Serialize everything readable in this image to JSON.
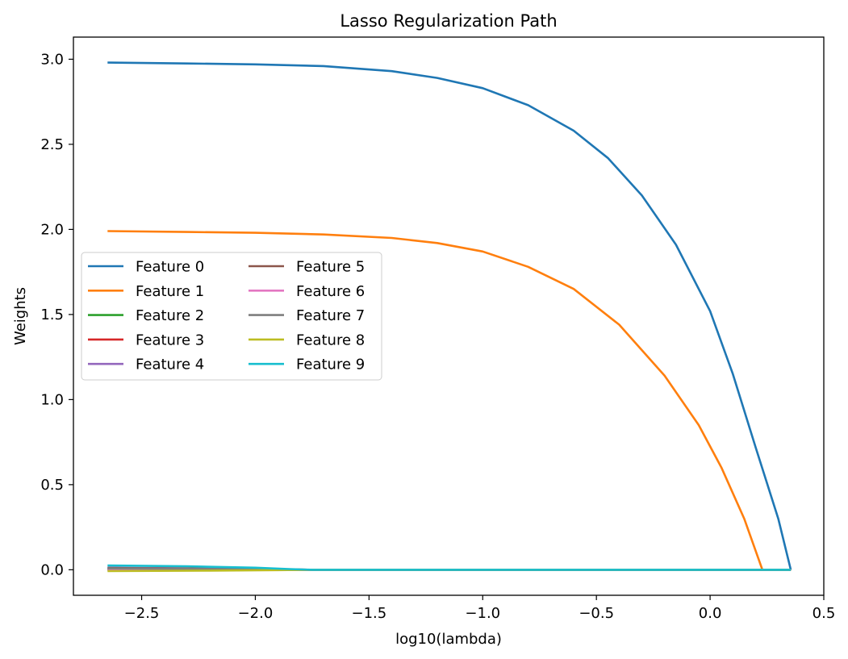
{
  "chart_data": {
    "type": "line",
    "title": "Lasso Regularization Path",
    "xlabel": "log10(lambda)",
    "ylabel": "Weights",
    "xlim": [
      -2.8,
      0.5
    ],
    "ylim": [
      -0.15,
      3.13
    ],
    "xticks": [
      -2.5,
      -2.0,
      -1.5,
      -1.0,
      -0.5,
      0.0,
      0.5
    ],
    "xtick_labels": [
      "−2.5",
      "−2.0",
      "−1.5",
      "−1.0",
      "−0.5",
      "0.0",
      "0.5"
    ],
    "yticks": [
      0.0,
      0.5,
      1.0,
      1.5,
      2.0,
      2.5,
      3.0
    ],
    "ytick_labels": [
      "0.0",
      "0.5",
      "1.0",
      "1.5",
      "2.0",
      "2.5",
      "3.0"
    ],
    "grid": false,
    "legend_position": "center-left",
    "legend_columns": 2,
    "series": [
      {
        "name": "Feature 0",
        "color": "#1f77b4",
        "x": [
          -2.65,
          -2.3,
          -2.0,
          -1.7,
          -1.4,
          -1.2,
          -1.0,
          -0.8,
          -0.6,
          -0.45,
          -0.3,
          -0.15,
          0.0,
          0.1,
          0.2,
          0.3,
          0.355
        ],
        "y": [
          2.98,
          2.975,
          2.97,
          2.96,
          2.93,
          2.89,
          2.83,
          2.73,
          2.58,
          2.42,
          2.2,
          1.91,
          1.52,
          1.15,
          0.72,
          0.3,
          0.0
        ]
      },
      {
        "name": "Feature 1",
        "color": "#ff7f0e",
        "x": [
          -2.65,
          -2.3,
          -2.0,
          -1.7,
          -1.4,
          -1.2,
          -1.0,
          -0.8,
          -0.6,
          -0.4,
          -0.2,
          -0.05,
          0.05,
          0.15,
          0.23
        ],
        "y": [
          1.99,
          1.985,
          1.98,
          1.97,
          1.95,
          1.92,
          1.87,
          1.78,
          1.65,
          1.44,
          1.14,
          0.85,
          0.6,
          0.3,
          0.0
        ]
      },
      {
        "name": "Feature 2",
        "color": "#2ca02c",
        "x": [
          -2.65,
          -2.0,
          -1.75,
          0.355
        ],
        "y": [
          0.0,
          0.0,
          0.0,
          0.0
        ]
      },
      {
        "name": "Feature 3",
        "color": "#d62728",
        "x": [
          -2.65,
          -2.2,
          -2.0,
          -1.75,
          0.355
        ],
        "y": [
          0.005,
          0.003,
          0.001,
          0.0,
          0.0
        ]
      },
      {
        "name": "Feature 4",
        "color": "#9467bd",
        "x": [
          -2.65,
          -2.2,
          -1.9,
          -1.75,
          0.355
        ],
        "y": [
          0.012,
          0.008,
          0.003,
          0.0,
          0.0
        ]
      },
      {
        "name": "Feature 5",
        "color": "#8c564b",
        "x": [
          -2.65,
          -2.2,
          -1.9,
          -1.75,
          0.355
        ],
        "y": [
          0.01,
          0.007,
          0.003,
          0.0,
          0.0
        ]
      },
      {
        "name": "Feature 6",
        "color": "#e377c2",
        "x": [
          -2.65,
          -2.0,
          0.355
        ],
        "y": [
          0.0,
          0.0,
          0.0
        ]
      },
      {
        "name": "Feature 7",
        "color": "#7f7f7f",
        "x": [
          -2.65,
          -2.2,
          -1.9,
          -1.75,
          0.355
        ],
        "y": [
          0.008,
          0.005,
          0.002,
          0.0,
          0.0
        ]
      },
      {
        "name": "Feature 8",
        "color": "#bcbd22",
        "x": [
          -2.65,
          -2.2,
          -1.9,
          -1.75,
          0.355
        ],
        "y": [
          -0.008,
          -0.005,
          -0.002,
          0.0,
          0.0
        ]
      },
      {
        "name": "Feature 9",
        "color": "#17becf",
        "x": [
          -2.65,
          -2.3,
          -2.0,
          -1.85,
          -1.75,
          0.355
        ],
        "y": [
          0.025,
          0.02,
          0.012,
          0.004,
          0.0,
          0.0
        ]
      }
    ]
  }
}
